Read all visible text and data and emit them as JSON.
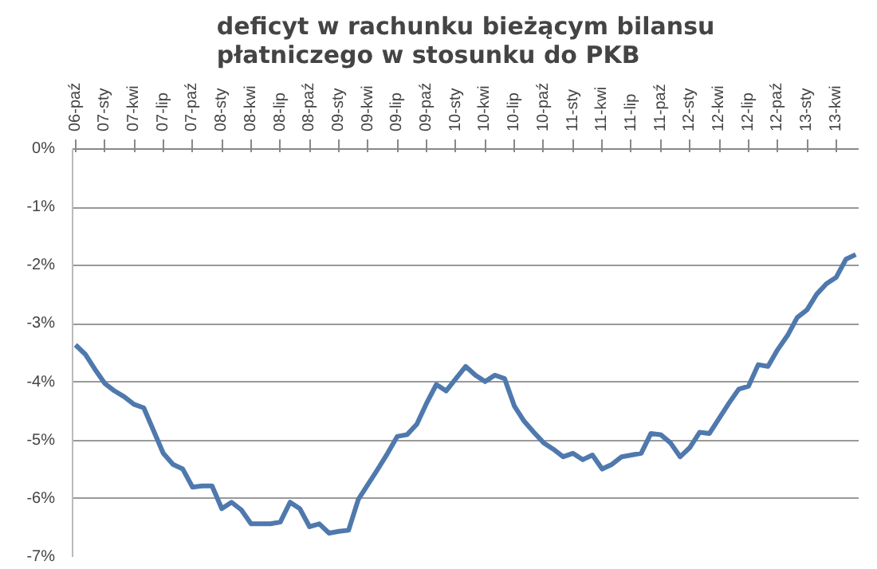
{
  "chart_data": {
    "type": "line",
    "title": "deficyt w rachunku bieżącym bilansu\npłatniczego w stosunku do PKB",
    "categories": [
      "06-paź",
      null,
      null,
      "07-sty",
      null,
      null,
      "07-kwi",
      null,
      null,
      "07-lip",
      null,
      null,
      "07-paź",
      null,
      null,
      "08-sty",
      null,
      null,
      "08-kwi",
      null,
      null,
      "08-lip",
      null,
      null,
      "08-paź",
      null,
      null,
      "09-sty",
      null,
      null,
      "09-kwi",
      null,
      null,
      "09-lip",
      null,
      null,
      "09-paź",
      null,
      null,
      "10-sty",
      null,
      null,
      "10-kwi",
      null,
      null,
      "10-lip",
      null,
      null,
      "10-paź",
      null,
      null,
      "11-sty",
      null,
      null,
      "11-kwi",
      null,
      null,
      "11-lip",
      null,
      null,
      "11-paź",
      null,
      null,
      "12-sty",
      null,
      null,
      "12-kwi",
      null,
      null,
      "12-lip",
      null,
      null,
      "12-paź",
      null,
      null,
      "13-sty",
      null,
      null,
      "13-kwi",
      null,
      null
    ],
    "series": [
      {
        "color": "#4f79ad",
        "values": [
          -3.36,
          -3.52,
          -3.78,
          -4.02,
          -4.15,
          -4.25,
          -4.38,
          -4.44,
          -4.83,
          -5.22,
          -5.41,
          -5.49,
          -5.8,
          -5.78,
          -5.78,
          -6.17,
          -6.06,
          -6.19,
          -6.43,
          -6.43,
          -6.43,
          -6.4,
          -6.06,
          -6.17,
          -6.48,
          -6.43,
          -6.59,
          -6.56,
          -6.54,
          -6.01,
          -5.75,
          -5.49,
          -5.22,
          -4.93,
          -4.9,
          -4.72,
          -4.36,
          -4.04,
          -4.15,
          -3.94,
          -3.73,
          -3.88,
          -3.99,
          -3.88,
          -3.94,
          -4.41,
          -4.67,
          -4.86,
          -5.04,
          -5.15,
          -5.28,
          -5.22,
          -5.33,
          -5.25,
          -5.49,
          -5.41,
          -5.28,
          -5.25,
          -5.22,
          -4.88,
          -4.9,
          -5.04,
          -5.28,
          -5.12,
          -4.86,
          -4.88,
          -4.62,
          -4.36,
          -4.12,
          -4.07,
          -3.7,
          -3.73,
          -3.44,
          -3.2,
          -2.89,
          -2.76,
          -2.49,
          -2.31,
          -2.2,
          -1.89,
          -1.81
        ]
      }
    ],
    "ylim": [
      -7,
      0
    ],
    "yticks": [
      {
        "value": 0,
        "label": "0%"
      },
      {
        "value": -1,
        "label": "-1%"
      },
      {
        "value": -2,
        "label": "-2%"
      },
      {
        "value": -3,
        "label": "-3%"
      },
      {
        "value": -4,
        "label": "-4%"
      },
      {
        "value": -5,
        "label": "-5%"
      },
      {
        "value": -6,
        "label": "-6%"
      },
      {
        "value": -7,
        "label": "-7%"
      }
    ],
    "grid": "y",
    "marker": "none",
    "line_style": "solid"
  }
}
